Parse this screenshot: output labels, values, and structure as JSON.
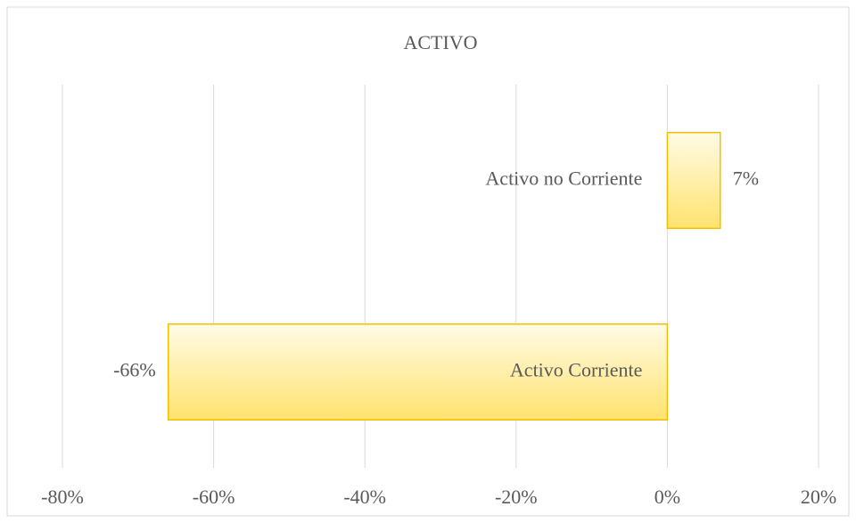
{
  "chart_data": {
    "type": "bar",
    "orientation": "horizontal",
    "title": "ACTIVO",
    "categories": [
      "Activo Corriente",
      "Activo no Corriente"
    ],
    "values": [
      -66,
      7
    ],
    "value_labels": [
      "-66%",
      "7%"
    ],
    "color": "#ffe36e",
    "edge_color": "#f0c000",
    "xlim": [
      -80,
      20
    ],
    "xticks": [
      {
        "value": -80,
        "label": "-80%"
      },
      {
        "value": -60,
        "label": "-60%"
      },
      {
        "value": -40,
        "label": "-40%"
      },
      {
        "value": -20,
        "label": "-20%"
      },
      {
        "value": 0,
        "label": "0%"
      },
      {
        "value": 20,
        "label": "20%"
      }
    ],
    "grid": true
  }
}
